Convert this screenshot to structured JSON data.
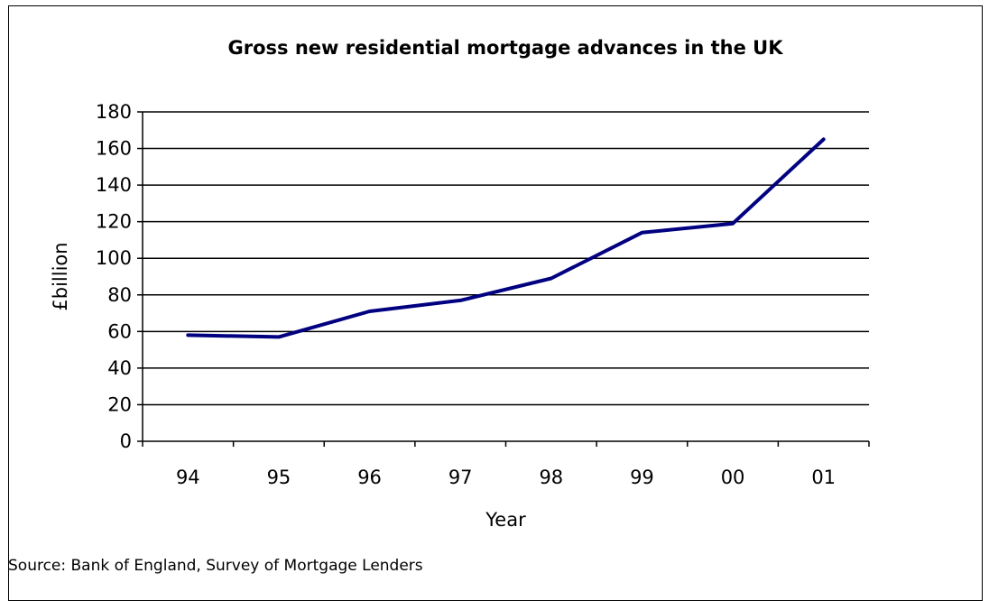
{
  "chart_data": {
    "type": "line",
    "title": "Gross new residential mortgage advances in the UK",
    "xlabel": "Year",
    "ylabel": "£billion",
    "categories": [
      "94",
      "95",
      "96",
      "97",
      "98",
      "99",
      "00",
      "01"
    ],
    "series": [
      {
        "values": [
          58,
          57,
          71,
          77,
          89,
          114,
          119,
          165
        ],
        "color": "#000080"
      }
    ],
    "ylim": [
      0,
      180
    ],
    "yticks": [
      0,
      20,
      40,
      60,
      80,
      100,
      120,
      140,
      160,
      180
    ],
    "grid": true,
    "legend": "none"
  },
  "source": "Source: Bank of England, Survey of Mortgage Lenders"
}
